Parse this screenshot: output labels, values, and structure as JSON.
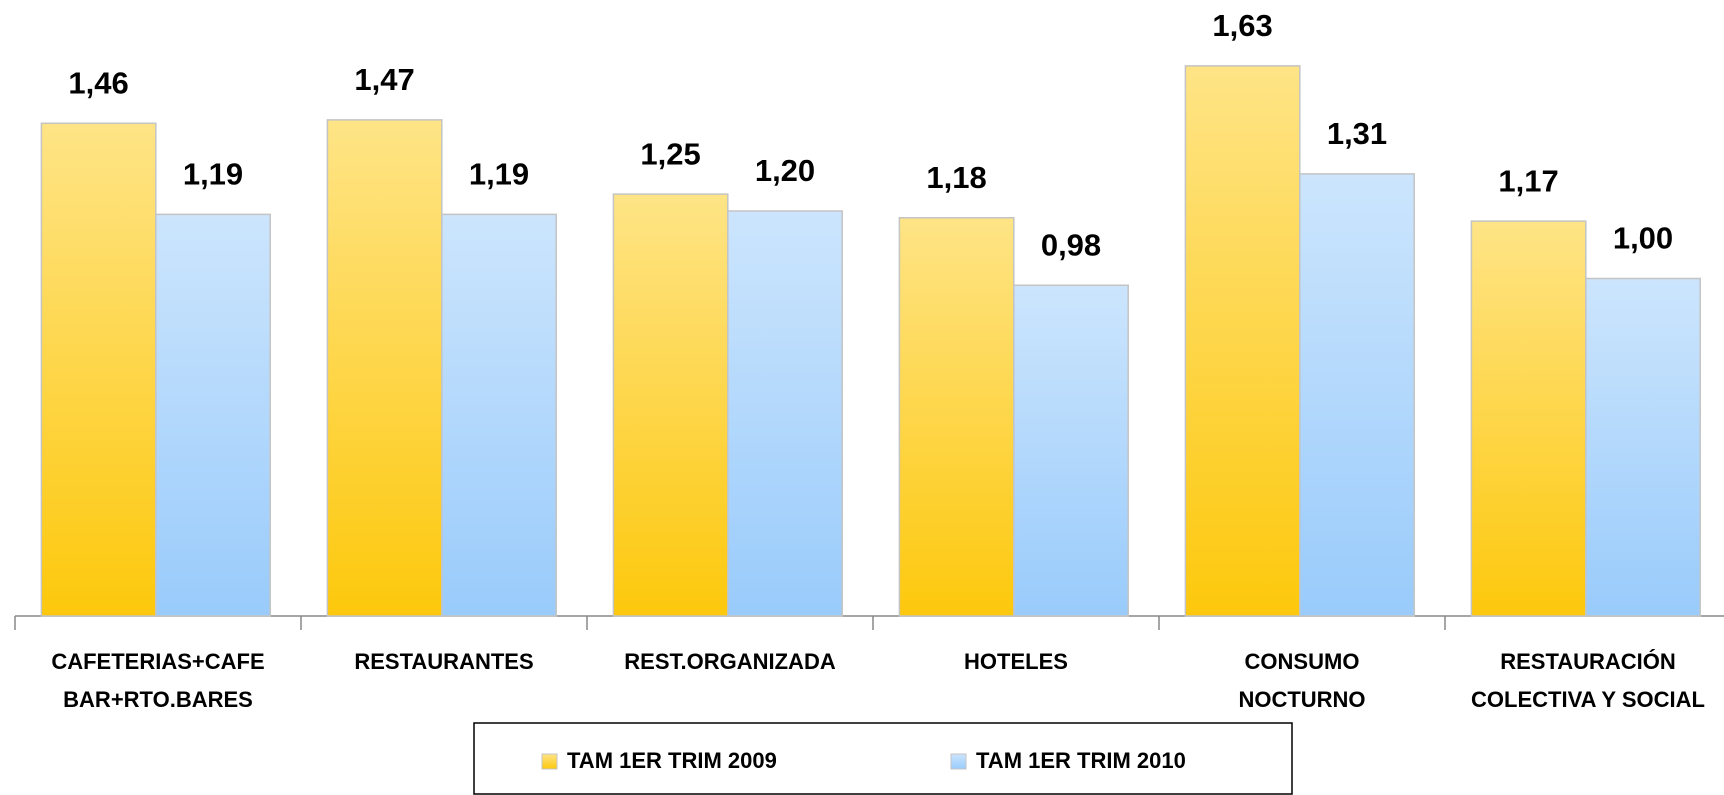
{
  "chart_data": {
    "type": "bar",
    "categories": [
      "CAFETERIAS+CAFE\nBAR+RTO.BARES",
      "RESTAURANTES",
      "REST.ORGANIZADA",
      "HOTELES",
      "CONSUMO\nNOCTURNO",
      "RESTAURACIÓN\nCOLECTIVA Y SOCIAL"
    ],
    "series": [
      {
        "name": "TAM 1ER TRIM 2009",
        "color": "#fdc80c",
        "values": [
          1.46,
          1.47,
          1.25,
          1.18,
          1.63,
          1.17
        ],
        "value_labels": [
          "1,46",
          "1,47",
          "1,25",
          "1,18",
          "1,63",
          "1,17"
        ]
      },
      {
        "name": "TAM 1ER TRIM 2010",
        "color": "#99cbfb",
        "values": [
          1.19,
          1.19,
          1.2,
          0.98,
          1.31,
          1.0
        ],
        "value_labels": [
          "1,19",
          "1,19",
          "1,20",
          "0,98",
          "1,31",
          "1,00"
        ]
      }
    ],
    "legend": "bottom"
  }
}
